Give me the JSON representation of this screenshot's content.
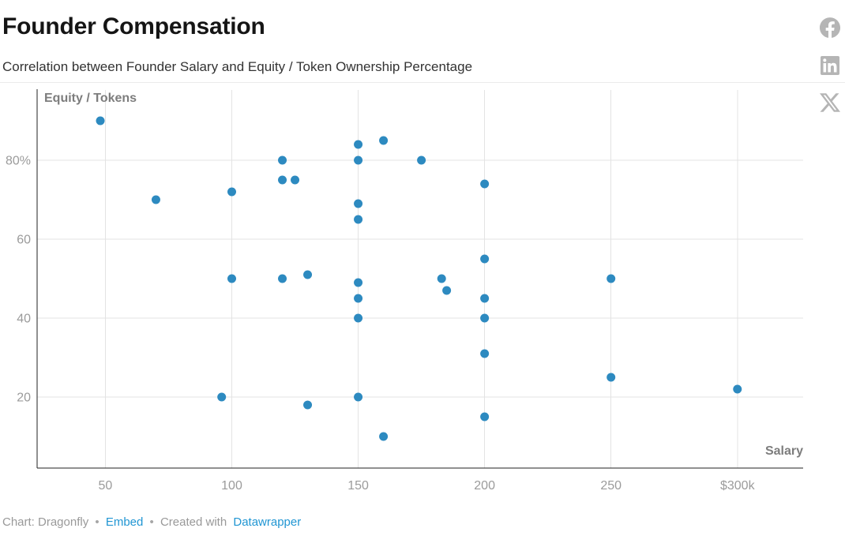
{
  "header": {
    "title": "Founder Compensation",
    "subtitle": "Correlation between Founder Salary and Equity / Token Ownership Percentage"
  },
  "share": {
    "facebook_label": "Share on Facebook",
    "linkedin_label": "Share on LinkedIn",
    "x_label": "Share on X",
    "icon_color": "#b5b5b5"
  },
  "footer": {
    "credit": "Chart: Dragonfly",
    "separator": "•",
    "embed": "Embed",
    "created_with": "Created with",
    "tool": "Datawrapper"
  },
  "chart_data": {
    "type": "scatter",
    "xlabel": "Salary",
    "ylabel": "Equity / Tokens",
    "xlim": [
      23,
      326
    ],
    "ylim": [
      2,
      98
    ],
    "grid": true,
    "x_ticks": [
      {
        "value": 50,
        "label": "50"
      },
      {
        "value": 100,
        "label": "100"
      },
      {
        "value": 150,
        "label": "150"
      },
      {
        "value": 200,
        "label": "200"
      },
      {
        "value": 250,
        "label": "250"
      },
      {
        "value": 300,
        "label": "$300k"
      }
    ],
    "y_ticks": [
      {
        "value": 20,
        "label": "20"
      },
      {
        "value": 40,
        "label": "40"
      },
      {
        "value": 60,
        "label": "60"
      },
      {
        "value": 80,
        "label": "80%"
      }
    ],
    "points": [
      [
        48,
        90
      ],
      [
        70,
        70
      ],
      [
        100,
        72
      ],
      [
        120,
        80
      ],
      [
        120,
        75
      ],
      [
        125,
        75
      ],
      [
        150,
        84
      ],
      [
        160,
        85
      ],
      [
        150,
        80
      ],
      [
        175,
        80
      ],
      [
        200,
        74
      ],
      [
        150,
        69
      ],
      [
        150,
        65
      ],
      [
        200,
        55
      ],
      [
        100,
        50
      ],
      [
        120,
        50
      ],
      [
        130,
        51
      ],
      [
        150,
        49
      ],
      [
        150,
        45
      ],
      [
        150,
        40
      ],
      [
        183,
        50
      ],
      [
        185,
        47
      ],
      [
        200,
        45
      ],
      [
        200,
        40
      ],
      [
        250,
        50
      ],
      [
        200,
        31
      ],
      [
        250,
        25
      ],
      [
        96,
        20
      ],
      [
        130,
        18
      ],
      [
        150,
        20
      ],
      [
        160,
        10
      ],
      [
        300,
        22
      ],
      [
        200,
        15
      ]
    ],
    "point_color": "#2d8ac0",
    "point_radius": 5.5,
    "grid_color": "#e3e3e3",
    "axis_color": "#222222",
    "tick_color": "#9b9b9b"
  }
}
